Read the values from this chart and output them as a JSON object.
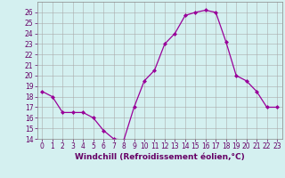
{
  "x": [
    0,
    1,
    2,
    3,
    4,
    5,
    6,
    7,
    8,
    9,
    10,
    11,
    12,
    13,
    14,
    15,
    16,
    17,
    18,
    19,
    20,
    21,
    22,
    23
  ],
  "y": [
    18.5,
    18.0,
    16.5,
    16.5,
    16.5,
    16.0,
    14.8,
    14.0,
    13.9,
    17.0,
    19.5,
    20.5,
    23.0,
    24.0,
    25.7,
    26.0,
    26.2,
    26.0,
    23.2,
    20.0,
    19.5,
    18.5,
    17.0,
    17.0
  ],
  "line_color": "#990099",
  "marker": "D",
  "marker_size": 2,
  "bg_color": "#d4f0f0",
  "grid_color": "#aaaaaa",
  "xlabel": "Windchill (Refroidissement éolien,°C)",
  "ylim": [
    14,
    27
  ],
  "xlim": [
    -0.5,
    23.5
  ],
  "yticks": [
    14,
    15,
    16,
    17,
    18,
    19,
    20,
    21,
    22,
    23,
    24,
    25,
    26
  ],
  "xticks": [
    0,
    1,
    2,
    3,
    4,
    5,
    6,
    7,
    8,
    9,
    10,
    11,
    12,
    13,
    14,
    15,
    16,
    17,
    18,
    19,
    20,
    21,
    22,
    23
  ],
  "tick_fontsize": 5.5,
  "xlabel_fontsize": 6.5,
  "tick_color": "#660066",
  "label_color": "#660066",
  "spine_color": "#888888"
}
